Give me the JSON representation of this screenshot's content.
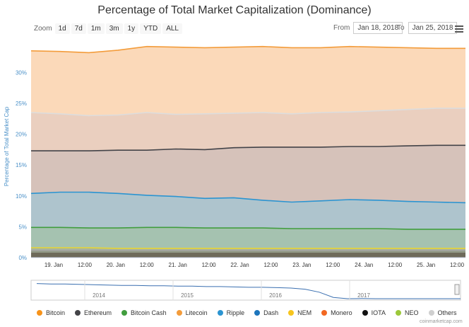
{
  "chart_data": {
    "type": "area",
    "title": "Percentage of Total Market Capitalization (Dominance)",
    "ylabel": "Percentage of Total Market Cap",
    "ylim": [
      0,
      36
    ],
    "yticks": [
      "0%",
      "5%",
      "10%",
      "15%",
      "20%",
      "25%",
      "30%"
    ],
    "xticks": [
      "19. Jan",
      "12:00",
      "20. Jan",
      "12:00",
      "21. Jan",
      "12:00",
      "22. Jan",
      "12:00",
      "23. Jan",
      "12:00",
      "24. Jan",
      "12:00",
      "25. Jan",
      "12:00"
    ],
    "x": [
      "Jan 18 12:00",
      "Jan 19 00:00",
      "Jan 19 12:00",
      "Jan 20 00:00",
      "Jan 20 12:00",
      "Jan 21 00:00",
      "Jan 21 12:00",
      "Jan 22 00:00",
      "Jan 22 12:00",
      "Jan 23 00:00",
      "Jan 23 12:00",
      "Jan 24 00:00",
      "Jan 24 12:00",
      "Jan 25 00:00",
      "Jan 25 12:00",
      "Jan 25 15:00"
    ],
    "stacking": "cumulative",
    "series": [
      {
        "name": "Others",
        "color": "#dddddd",
        "fill": "#fbd9b9",
        "cumulative": [
          33.5,
          33.4,
          33.2,
          33.6,
          34.2,
          34.1,
          34.0,
          34.1,
          34.2,
          34.0,
          34.0,
          34.2,
          34.1,
          34.0,
          33.9,
          33.9
        ]
      },
      {
        "name": "Others",
        "color": "#dddddd",
        "fill": "#eacfbf",
        "cumulative": [
          23.5,
          23.3,
          23.0,
          23.1,
          23.5,
          23.2,
          23.3,
          23.4,
          23.5,
          23.3,
          23.5,
          23.6,
          23.8,
          24.0,
          24.2,
          24.2
        ]
      },
      {
        "name": "Ethereum",
        "color": "#434348",
        "fill": "#d6c2ba",
        "cumulative": [
          17.3,
          17.3,
          17.3,
          17.4,
          17.4,
          17.6,
          17.5,
          17.8,
          17.9,
          17.9,
          17.9,
          18.0,
          18.0,
          18.1,
          18.2,
          18.2
        ]
      },
      {
        "name": "Ripple",
        "color": "#2b94d1",
        "fill": "#aec4cd",
        "cumulative": [
          10.4,
          10.6,
          10.6,
          10.4,
          10.1,
          9.9,
          9.6,
          9.7,
          9.3,
          9.0,
          9.2,
          9.4,
          9.3,
          9.1,
          9.0,
          8.9
        ]
      },
      {
        "name": "Bitcoin Cash",
        "color": "#419d3e",
        "fill": "#a5c2b0",
        "cumulative": [
          4.9,
          4.9,
          4.8,
          4.8,
          4.9,
          4.9,
          4.8,
          4.8,
          4.8,
          4.7,
          4.7,
          4.7,
          4.7,
          4.6,
          4.6,
          4.6
        ]
      },
      {
        "name": "NEM",
        "color": "#e8d534",
        "fill": "#a6b59a",
        "cumulative": [
          1.6,
          1.6,
          1.6,
          1.5,
          1.5,
          1.5,
          1.5,
          1.5,
          1.5,
          1.5,
          1.5,
          1.5,
          1.5,
          1.5,
          1.5,
          1.5
        ]
      },
      {
        "name": "Litecoin",
        "color": "#a9a9a9",
        "fill": "#939a88",
        "cumulative": [
          1.2,
          1.2,
          1.2,
          1.2,
          1.2,
          1.2,
          1.2,
          1.2,
          1.2,
          1.2,
          1.2,
          1.2,
          1.2,
          1.2,
          1.2,
          1.2
        ]
      }
    ],
    "navigator": {
      "xticks": [
        "2014",
        "2015",
        "2016",
        "2017"
      ],
      "values": [
        95,
        94,
        94,
        93,
        92,
        91,
        90,
        90,
        89,
        89,
        88,
        88,
        87,
        87,
        86,
        85,
        85,
        84,
        83,
        80,
        72,
        58,
        52,
        55,
        48,
        45,
        40,
        38,
        50,
        36,
        34
      ]
    },
    "legend": [
      {
        "name": "Bitcoin",
        "color": "#f7931a"
      },
      {
        "name": "Ethereum",
        "color": "#434348"
      },
      {
        "name": "Bitcoin Cash",
        "color": "#419d3e"
      },
      {
        "name": "Litecoin",
        "color": "#f39c3b"
      },
      {
        "name": "Ripple",
        "color": "#2b94d1"
      },
      {
        "name": "Dash",
        "color": "#1c75bc"
      },
      {
        "name": "NEM",
        "color": "#f7c51e"
      },
      {
        "name": "Monero",
        "color": "#f26822"
      },
      {
        "name": "IOTA",
        "color": "#111111"
      },
      {
        "name": "NEO",
        "color": "#9cc83a"
      },
      {
        "name": "Others",
        "color": "#cfcfcf"
      }
    ]
  },
  "zoom": {
    "label": "Zoom",
    "buttons": [
      "1d",
      "7d",
      "1m",
      "3m",
      "1y",
      "YTD",
      "ALL"
    ]
  },
  "range": {
    "from_label": "From",
    "from_value": "Jan 18, 2018",
    "to_label": "To",
    "to_value": "Jan 25, 2018"
  },
  "credit": "coinmarketcap.com"
}
